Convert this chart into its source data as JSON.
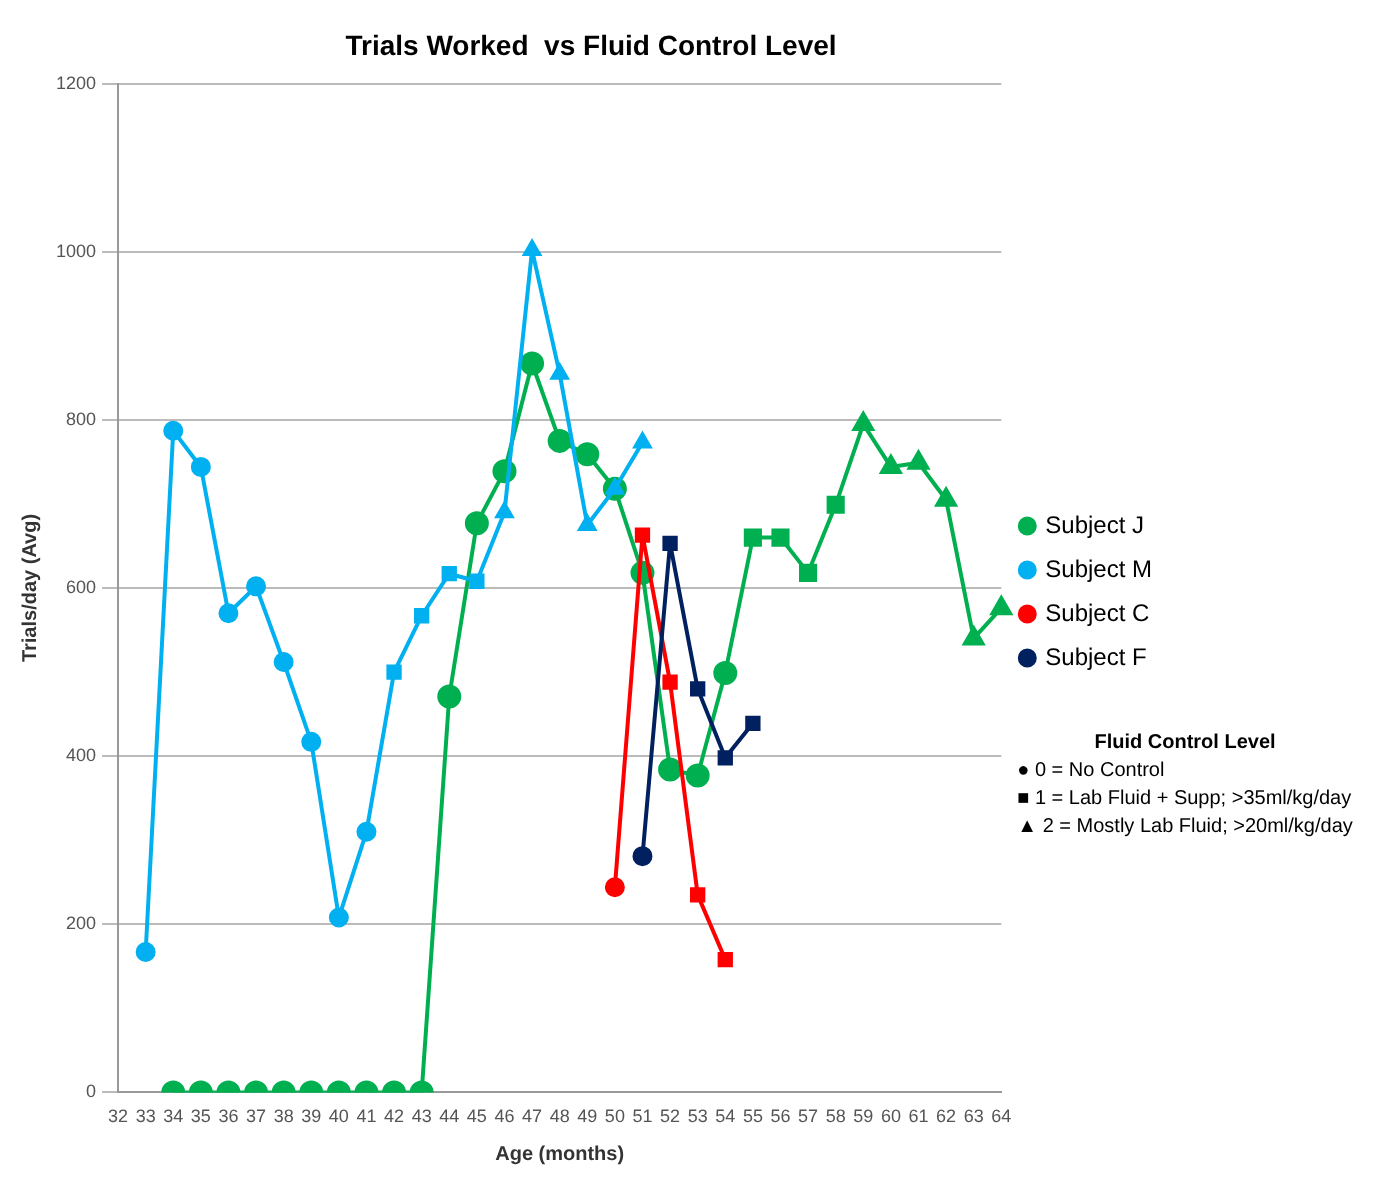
{
  "chart_data": {
    "type": "line",
    "title": "Trials Worked  vs Fluid Control Level",
    "xlabel": "Age (months)",
    "ylabel": "Trials/day (Avg)",
    "categories": [
      "32",
      "33",
      "34",
      "35",
      "36",
      "37",
      "38",
      "39",
      "40",
      "41",
      "42",
      "43",
      "44",
      "45",
      "46",
      "47",
      "48",
      "49",
      "50",
      "51",
      "52",
      "53",
      "54",
      "55",
      "56",
      "57",
      "58",
      "59",
      "60",
      "61",
      "62",
      "63",
      "64"
    ],
    "series": [
      {
        "name": "Subject J",
        "color": "#00b050",
        "values": [
          null,
          null,
          0,
          0,
          0,
          0,
          0,
          0,
          0,
          0,
          0,
          0,
          471,
          677,
          739,
          867,
          775,
          759,
          718,
          618,
          384,
          377,
          499,
          660,
          660,
          618,
          699,
          795,
          744,
          749,
          705,
          540,
          576
        ],
        "marker": [
          null,
          null,
          "circle",
          "circle",
          "circle",
          "circle",
          "circle",
          "circle",
          "circle",
          "circle",
          "circle",
          "circle",
          "circle",
          "circle",
          "circle",
          "circle",
          "circle",
          "circle",
          "circle",
          "circle",
          "circle",
          "circle",
          "circle",
          "square",
          "square",
          "square",
          "square",
          "triangle",
          "triangle",
          "triangle",
          "triangle",
          "triangle",
          "triangle"
        ]
      },
      {
        "name": "Subject M",
        "color": "#00b0f0",
        "values": [
          null,
          167,
          787,
          744,
          570,
          602,
          512,
          417,
          208,
          310,
          500,
          567,
          617,
          608,
          690,
          1002,
          855,
          675,
          718,
          773,
          null,
          null,
          null,
          null,
          null,
          null,
          null,
          null,
          null,
          null,
          null,
          null,
          null
        ],
        "marker": [
          null,
          "circle",
          "circle",
          "circle",
          "circle",
          "circle",
          "circle",
          "circle",
          "circle",
          "circle",
          "square",
          "square",
          "square",
          "square",
          "triangle",
          "triangle",
          "triangle",
          "triangle",
          "triangle",
          "triangle",
          null,
          null,
          null,
          null,
          null,
          null,
          null,
          null,
          null,
          null,
          null,
          null,
          null
        ]
      },
      {
        "name": "Subject C",
        "color": "#ff0000",
        "values": [
          null,
          null,
          null,
          null,
          null,
          null,
          null,
          null,
          null,
          null,
          null,
          null,
          null,
          null,
          null,
          null,
          null,
          null,
          244,
          663,
          488,
          235,
          158,
          null,
          null,
          null,
          null,
          null,
          null,
          null,
          null,
          null,
          null
        ],
        "marker": [
          null,
          null,
          null,
          null,
          null,
          null,
          null,
          null,
          null,
          null,
          null,
          null,
          null,
          null,
          null,
          null,
          null,
          null,
          "circle",
          "square",
          "square",
          "square",
          "square",
          null,
          null,
          null,
          null,
          null,
          null,
          null,
          null,
          null,
          null
        ]
      },
      {
        "name": "Subject F",
        "color": "#002060",
        "values": [
          null,
          null,
          null,
          null,
          null,
          null,
          null,
          null,
          null,
          null,
          null,
          null,
          null,
          null,
          null,
          null,
          null,
          null,
          null,
          281,
          653,
          480,
          398,
          439,
          null,
          null,
          null,
          null,
          null,
          null,
          null,
          null,
          null
        ],
        "marker": [
          null,
          null,
          null,
          null,
          null,
          null,
          null,
          null,
          null,
          null,
          null,
          null,
          null,
          null,
          null,
          null,
          null,
          null,
          null,
          "circle",
          "square",
          "square",
          "square",
          "square",
          null,
          null,
          null,
          null,
          null,
          null,
          null,
          null,
          null
        ]
      }
    ],
    "ylim": [
      0,
      1200
    ],
    "yticks": [
      0,
      200,
      400,
      600,
      800,
      1000,
      1200
    ],
    "grid": "y",
    "legend": "right",
    "line_style": "solid",
    "annotations": [
      "Fluid Control Level",
      "● 0 = No Control",
      "■ 1 = Lab Fluid + Supp; >35ml/kg/day",
      "▲ 2 = Mostly Lab Fluid; >20ml/kg/day"
    ]
  }
}
